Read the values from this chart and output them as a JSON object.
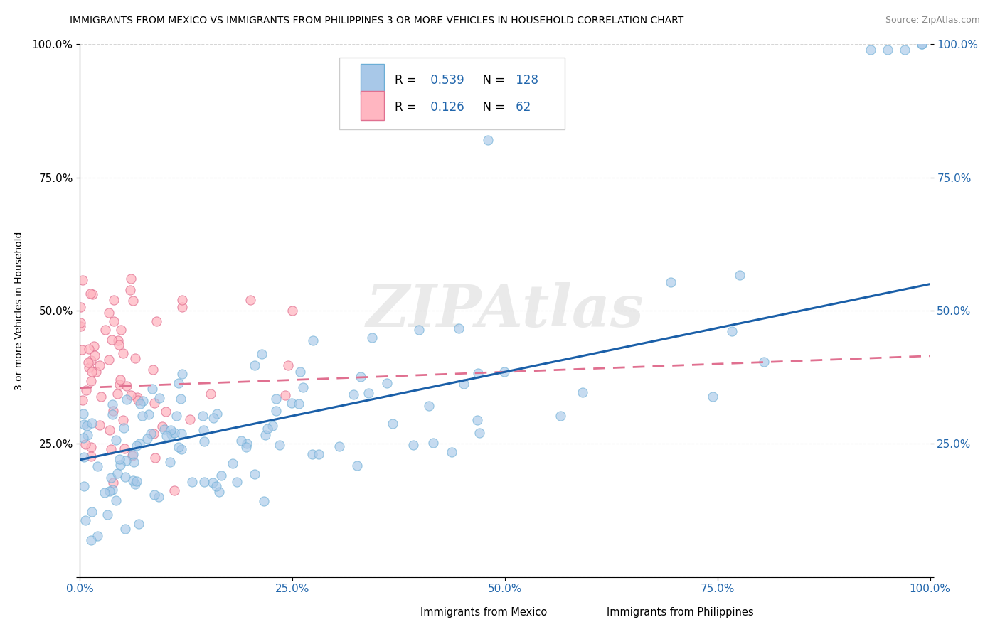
{
  "title": "IMMIGRANTS FROM MEXICO VS IMMIGRANTS FROM PHILIPPINES 3 OR MORE VEHICLES IN HOUSEHOLD CORRELATION CHART",
  "source": "Source: ZipAtlas.com",
  "ylabel": "3 or more Vehicles in Household",
  "watermark": "ZIPAtlas",
  "xlim": [
    0.0,
    1.0
  ],
  "ylim": [
    0.0,
    1.0
  ],
  "series1_color": "#a8c8e8",
  "series1_edge": "#6baed6",
  "series2_color": "#ffb6c1",
  "series2_edge": "#e07090",
  "line1_color": "#1a5fa8",
  "line2_color": "#e07090",
  "series1_label": "Immigrants from Mexico",
  "series2_label": "Immigrants from Philippines",
  "R1": 0.539,
  "N1": 128,
  "R2": 0.126,
  "N2": 62,
  "legend_color": "#2166ac",
  "background_color": "#ffffff",
  "line1_start_y": 0.22,
  "line1_end_y": 0.55,
  "line2_start_y": 0.355,
  "line2_end_y": 0.415
}
